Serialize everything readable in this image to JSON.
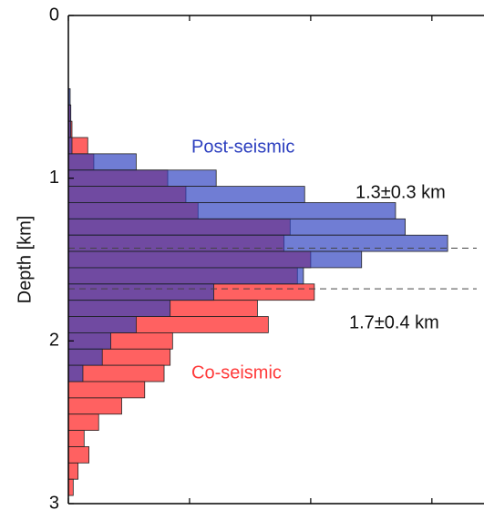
{
  "chart_data": {
    "type": "histogram",
    "orientation": "horizontal",
    "ylabel": "Depth [km]",
    "bins": [
      0.45,
      0.55,
      0.65,
      0.75,
      0.85,
      0.95,
      1.05,
      1.15,
      1.25,
      1.35,
      1.45,
      1.55,
      1.65,
      1.75,
      1.85,
      1.95,
      2.05,
      2.15,
      2.25,
      2.35,
      2.45,
      2.55,
      2.65,
      2.75,
      2.85,
      2.95
    ],
    "series": [
      {
        "name": "Co-seismic",
        "color": "#ff3a3a",
        "opacity": 0.8,
        "values": [
          0,
          0.02,
          0.03,
          0.16,
          0.21,
          0.82,
          0.97,
          1.07,
          1.83,
          1.78,
          2.0,
          1.89,
          2.03,
          1.56,
          1.65,
          0.86,
          0.84,
          0.79,
          0.63,
          0.44,
          0.25,
          0.13,
          0.17,
          0.08,
          0.04
        ]
      },
      {
        "name": "Post-seismic",
        "color": "#2c3fbf",
        "opacity": 0.68,
        "values": [
          0.015,
          0.02,
          0.02,
          0.03,
          0.56,
          1.22,
          1.95,
          2.7,
          2.78,
          3.13,
          2.42,
          1.94,
          1.2,
          0.84,
          0.56,
          0.35,
          0.28,
          0.12,
          0,
          0,
          0,
          0,
          0,
          0,
          0
        ]
      }
    ],
    "reference_lines": [
      1.43,
      1.68
    ],
    "annotations": [
      "1.3±0.3 km",
      "1.7±0.4 km"
    ],
    "ylim": [
      0,
      3
    ],
    "yticks": [
      0,
      1,
      2,
      3
    ],
    "y_inverted": true,
    "xlim": [
      0,
      3.43
    ],
    "xticks": [
      0,
      1,
      2,
      3
    ]
  }
}
